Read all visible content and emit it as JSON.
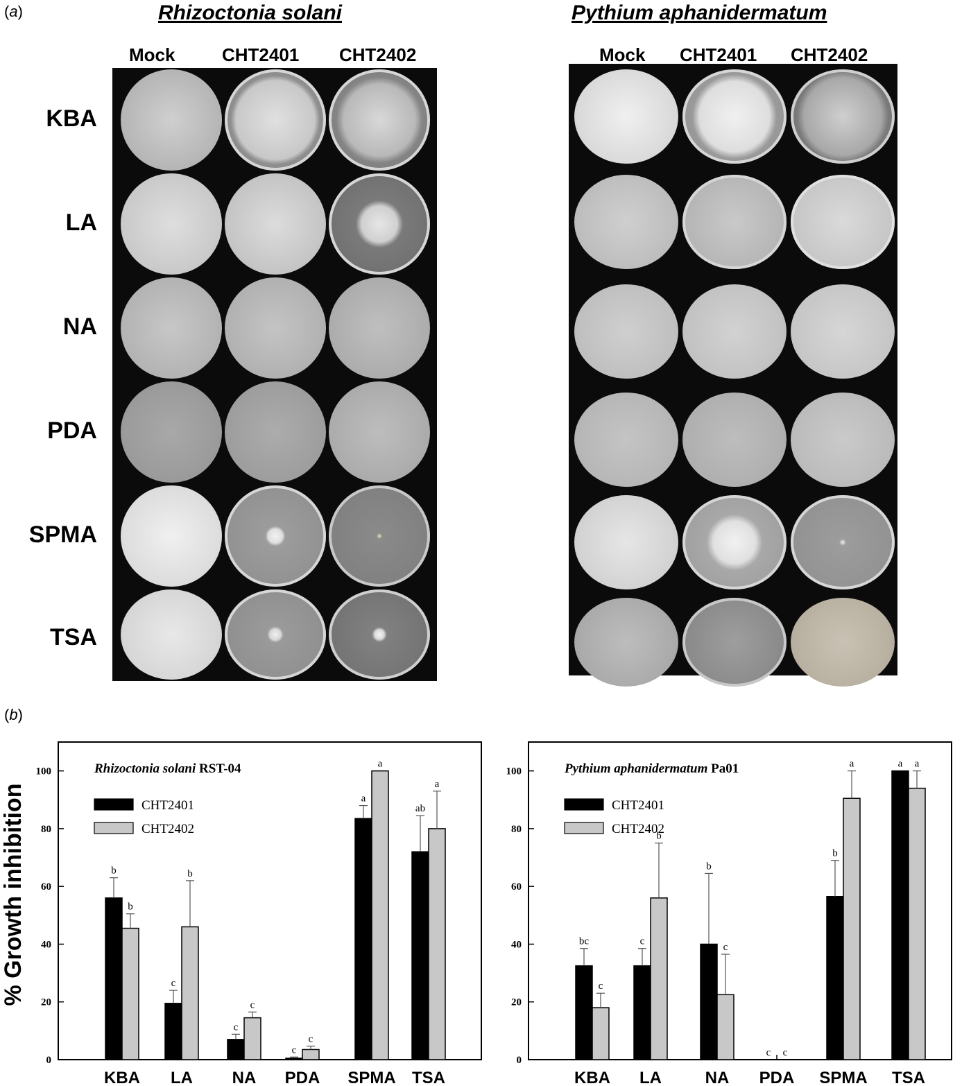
{
  "panel_a": {
    "tag_open": "(",
    "tag_letter": "a",
    "tag_close": ")",
    "left": {
      "species": "Rhizoctonia solani",
      "columns": [
        "Mock",
        "CHT2401",
        "CHT2402"
      ],
      "rows": [
        "KBA",
        "LA",
        "NA",
        "PDA",
        "SPMA",
        "TSA"
      ]
    },
    "right": {
      "species": "Pythium aphanidermatum",
      "columns": [
        "Mock",
        "CHT2401",
        "CHT2402"
      ]
    },
    "colors": {
      "background": "#0b0b0b",
      "mycelium": "#d8d8d8",
      "agar": "#a9a9a9"
    }
  },
  "panel_b": {
    "tag_open": "(",
    "tag_letter": "b",
    "tag_close": ")",
    "ylabel": "% Growth inhibition"
  },
  "chart_data": [
    {
      "type": "bar",
      "title_italic": "Rhizoctonia solani",
      "title_rest": " RST-04",
      "ylabel": "% Growth inhibition",
      "xlabel": "",
      "ylim": [
        0,
        110
      ],
      "yticks": [
        0,
        20,
        40,
        60,
        80,
        100
      ],
      "categories": [
        "KBA",
        "LA",
        "NA",
        "PDA",
        "SPMA",
        "TSA"
      ],
      "legend_position": "top-left",
      "series": [
        {
          "name": "CHT2401",
          "color": "#000000",
          "values": [
            56,
            19.5,
            7,
            0.5,
            83.5,
            72
          ],
          "errors": [
            7,
            4.5,
            1.8,
            0.4,
            4.5,
            12.5
          ],
          "letters": [
            "b",
            "c",
            "c",
            "c",
            "a",
            "ab"
          ]
        },
        {
          "name": "CHT2402",
          "color": "#c8c8c8",
          "values": [
            45.5,
            46,
            14.5,
            3.5,
            100,
            80
          ],
          "errors": [
            5,
            16,
            2,
            1.2,
            0,
            13
          ],
          "letters": [
            "b",
            "b",
            "c",
            "c",
            "a",
            "a"
          ]
        }
      ]
    },
    {
      "type": "bar",
      "title_italic": "Pythium aphanidermatum",
      "title_rest": " Pa01",
      "ylabel": "",
      "xlabel": "",
      "ylim": [
        0,
        110
      ],
      "yticks": [
        0,
        20,
        40,
        60,
        80,
        100
      ],
      "categories": [
        "KBA",
        "LA",
        "NA",
        "PDA",
        "SPMA",
        "TSA"
      ],
      "legend_position": "top-left",
      "series": [
        {
          "name": "CHT2401",
          "color": "#000000",
          "values": [
            32.5,
            32.5,
            40,
            0,
            56.5,
            100
          ],
          "errors": [
            6,
            6,
            24.5,
            0,
            12.5,
            0
          ],
          "letters": [
            "bc",
            "c",
            "b",
            "c",
            "b",
            "a"
          ]
        },
        {
          "name": "CHT2402",
          "color": "#c8c8c8",
          "values": [
            18,
            56,
            22.5,
            0,
            90.5,
            94
          ],
          "errors": [
            5,
            19,
            14,
            0,
            9.5,
            6
          ],
          "letters": [
            "c",
            "b",
            "c",
            "c",
            "a",
            "a"
          ]
        }
      ]
    }
  ]
}
